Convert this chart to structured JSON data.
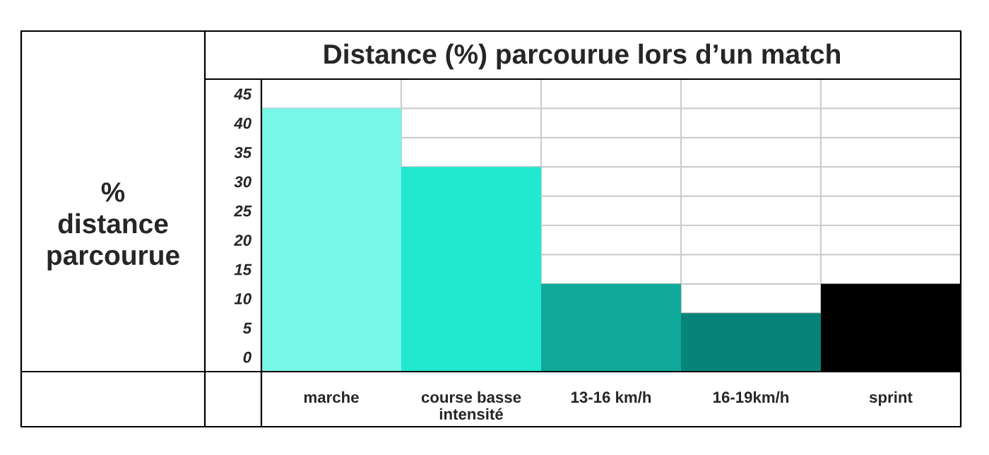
{
  "chart_data": {
    "type": "bar",
    "title": "Distance (%) parcourue lors d’un match",
    "ylabel": "%\ndistance\nparcourue",
    "categories": [
      "marche",
      "course basse\nintensité",
      "13-16 km/h",
      "16-19km/h",
      "sprint"
    ],
    "values": [
      45,
      35,
      15,
      10,
      15
    ],
    "colors": [
      "#76f7e8",
      "#22e8d0",
      "#0fa99a",
      "#06847a",
      "#000000"
    ],
    "ylim": [
      0,
      50
    ],
    "yticks": [
      0,
      5,
      10,
      15,
      20,
      25,
      30,
      35,
      40,
      45
    ],
    "grid": true
  }
}
